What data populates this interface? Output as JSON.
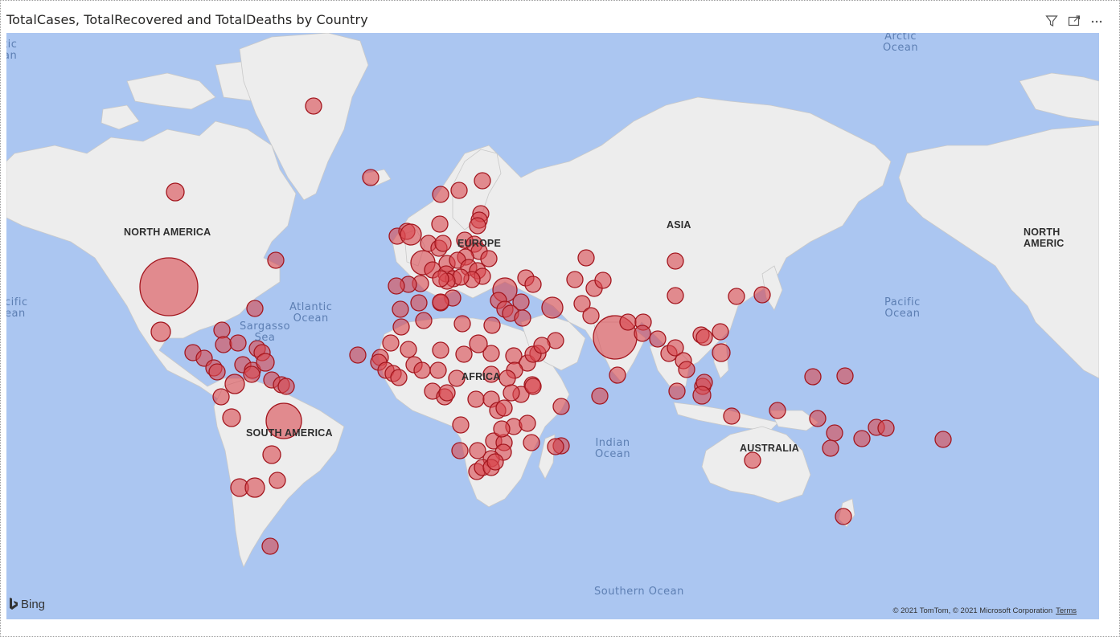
{
  "visual": {
    "title": "TotalCases, TotalRecovered and TotalDeaths by Country",
    "icons": [
      "filter-icon",
      "focus-mode-icon",
      "more-options-icon"
    ]
  },
  "map": {
    "ocean_labels": [
      {
        "id": "atlantic",
        "text": "Atlantic\nOcean"
      },
      {
        "id": "arctic",
        "text": "Arctic\nOcean"
      },
      {
        "id": "pacific-east",
        "text": "Pacific\nOcean"
      },
      {
        "id": "pacific-west",
        "text": "cific\nean"
      },
      {
        "id": "indian",
        "text": "Indian\nOcean"
      },
      {
        "id": "southern",
        "text": "Southern Ocean"
      },
      {
        "id": "sargasso",
        "text": "Sargasso\nSea"
      },
      {
        "id": "arctic-west",
        "text": "tic\nan"
      }
    ],
    "continent_labels": [
      {
        "id": "north-america",
        "text": "NORTH AMERICA"
      },
      {
        "id": "north-america-east",
        "text": "NORTH AMERIC"
      },
      {
        "id": "south-america",
        "text": "SOUTH AMERICA"
      },
      {
        "id": "europe",
        "text": "EUROPE"
      },
      {
        "id": "africa",
        "text": "AFRICA"
      },
      {
        "id": "asia",
        "text": "ASIA"
      },
      {
        "id": "australia",
        "text": "AUSTRALIA"
      }
    ],
    "bubble_color": "#d9484f",
    "bubble_stroke": "#a3161e",
    "land_color": "#ededed",
    "ocean_color": "#abc6f1",
    "bing_label": "Bing",
    "copyright": "© 2021 TomTom, © 2021 Microsoft Corporation",
    "terms_label": "Terms"
  }
}
